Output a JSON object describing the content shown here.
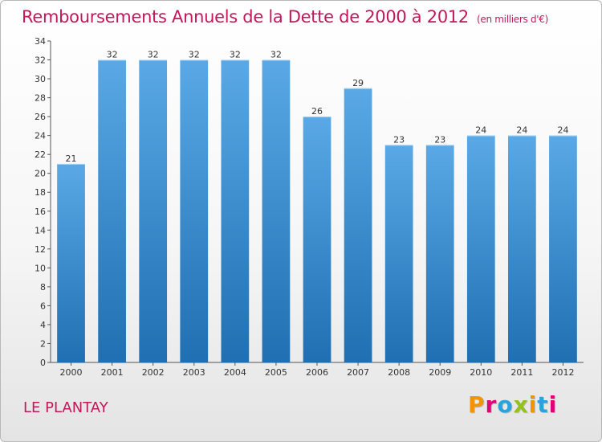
{
  "header": {
    "title": "Remboursements Annuels de la Dette de 2000 à 2012",
    "unit": "(en milliers d'€)"
  },
  "footer": {
    "commune": "LE PLANTAY",
    "logo_text": "Proxiti"
  },
  "colors": {
    "title": "#c2185b",
    "bar_top": "#5aa9e6",
    "bar_bottom": "#1f6fb2",
    "logo": [
      "#f29400",
      "#e2007a",
      "#2aa2dc",
      "#95c11f",
      "#f29400",
      "#2aa2dc",
      "#e2007a"
    ]
  },
  "chart_data": {
    "type": "bar",
    "title": "Remboursements Annuels de la Dette de 2000 à 2012",
    "categories": [
      "2000",
      "2001",
      "2002",
      "2003",
      "2004",
      "2005",
      "2006",
      "2007",
      "2008",
      "2009",
      "2010",
      "2011",
      "2012"
    ],
    "values": [
      21,
      32,
      32,
      32,
      32,
      32,
      26,
      29,
      23,
      23,
      24,
      24,
      24
    ],
    "ylim": [
      0,
      34
    ],
    "ytick_step": 2,
    "grid": false,
    "legend": "none"
  }
}
